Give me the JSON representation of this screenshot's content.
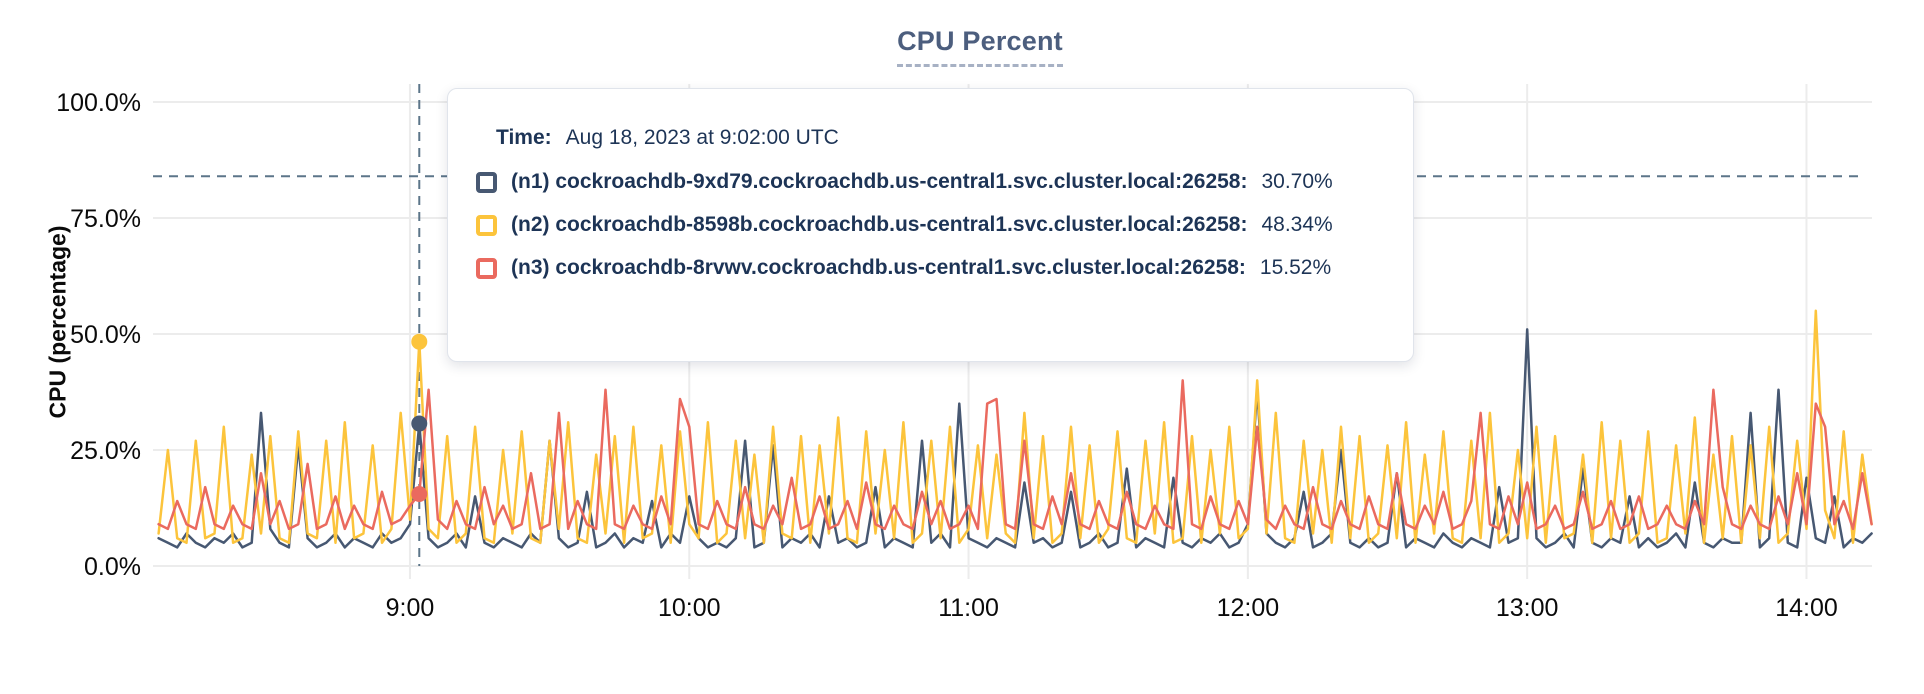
{
  "title": "CPU Percent",
  "colors": {
    "title": "#4C5E7E",
    "title_underline": "#A7B1C4",
    "grid": "#ECECEC",
    "crosshair": "#5C7589",
    "axis_text": "#0A0A0A",
    "tooltip_text": "#1D3456",
    "series_n1": "#475872",
    "series_n2": "#FCC43C",
    "series_n3": "#EA6A5F"
  },
  "tooltip": {
    "time_label": "Time:",
    "time_value": "Aug 18, 2023 at 9:02:00 UTC",
    "rows": [
      {
        "name": "(n1) cockroachdb-9xd79.cockroachdb.us-central1.svc.cluster.local:26258:",
        "value": "30.70%",
        "color": "#475872"
      },
      {
        "name": "(n2) cockroachdb-8598b.cockroachdb.us-central1.svc.cluster.local:26258:",
        "value": "48.34%",
        "color": "#FCC43C"
      },
      {
        "name": "(n3) cockroachdb-8rvwv.cockroachdb.us-central1.svc.cluster.local:26258:",
        "value": "15.52%",
        "color": "#EA6A5F"
      }
    ]
  },
  "chart_data": {
    "type": "line",
    "title": "CPU Percent",
    "xlabel": "",
    "ylabel": "CPU (percentage)",
    "ylim": [
      0,
      100
    ],
    "grid": true,
    "legend_position": "tooltip-overlay",
    "x_time_start": "8:06",
    "x_time_end": "14:14",
    "sample_step_minutes": 2,
    "yticks": [
      {
        "label": "0.0%",
        "value": 0
      },
      {
        "label": "25.0%",
        "value": 25
      },
      {
        "label": "50.0%",
        "value": 50
      },
      {
        "label": "75.0%",
        "value": 75
      },
      {
        "label": "100.0%",
        "value": 100
      }
    ],
    "xticks": [
      {
        "label": "9:00",
        "t": 54
      },
      {
        "label": "10:00",
        "t": 114
      },
      {
        "label": "11:00",
        "t": 174
      },
      {
        "label": "12:00",
        "t": 234
      },
      {
        "label": "13:00",
        "t": 294
      },
      {
        "label": "14:00",
        "t": 354
      }
    ],
    "hover": {
      "t": 56,
      "time": "Aug 18, 2023 at 9:02:00 UTC",
      "crosshair_value": 84,
      "points": [
        {
          "series": 0,
          "value": 30.7
        },
        {
          "series": 1,
          "value": 48.34
        },
        {
          "series": 2,
          "value": 15.52
        }
      ]
    },
    "series": [
      {
        "name": "(n1) cockroachdb-9xd79.cockroachdb.us-central1.svc.cluster.local:26258",
        "color": "#475872",
        "values": [
          6,
          5,
          4,
          7,
          5,
          4,
          6,
          5,
          7,
          4,
          5,
          33,
          8,
          5,
          4,
          26,
          6,
          4,
          5,
          7,
          4,
          6,
          5,
          4,
          7,
          5,
          6,
          9,
          30.7,
          6,
          4,
          5,
          7,
          4,
          15,
          5,
          4,
          6,
          5,
          4,
          7,
          5,
          27,
          6,
          4,
          5,
          16,
          4,
          5,
          7,
          4,
          6,
          5,
          14,
          4,
          7,
          5,
          15,
          6,
          4,
          5,
          4,
          6,
          27,
          4,
          5,
          26,
          4,
          6,
          5,
          7,
          4,
          15,
          5,
          6,
          4,
          5,
          17,
          4,
          6,
          5,
          4,
          27,
          5,
          7,
          4,
          35,
          6,
          5,
          4,
          6,
          5,
          4,
          18,
          5,
          6,
          4,
          5,
          16,
          4,
          5,
          7,
          4,
          5,
          21,
          4,
          6,
          5,
          4,
          19,
          5,
          4,
          6,
          5,
          7,
          4,
          5,
          9,
          38,
          7,
          5,
          4,
          6,
          16,
          4,
          5,
          7,
          25,
          5,
          4,
          6,
          4,
          5,
          20,
          4,
          6,
          5,
          4,
          7,
          5,
          4,
          6,
          5,
          4,
          17,
          5,
          6,
          51,
          6,
          4,
          5,
          7,
          4,
          21,
          5,
          4,
          6,
          5,
          15,
          4,
          6,
          4,
          5,
          7,
          4,
          18,
          5,
          4,
          6,
          5,
          5,
          33,
          4,
          6,
          38,
          5,
          4,
          19,
          6,
          5,
          15,
          4,
          6,
          5,
          7
        ]
      },
      {
        "name": "(n2) cockroachdb-8598b.cockroachdb.us-central1.svc.cluster.local:26258",
        "color": "#FCC43C",
        "values": [
          7,
          25,
          6,
          5,
          27,
          6,
          7,
          30,
          5,
          6,
          24,
          7,
          28,
          6,
          5,
          29,
          7,
          6,
          27,
          5,
          31,
          6,
          7,
          26,
          5,
          8,
          33,
          10,
          48.34,
          8,
          6,
          28,
          5,
          7,
          30,
          6,
          5,
          25,
          7,
          29,
          6,
          5,
          27,
          8,
          31,
          6,
          5,
          24,
          7,
          28,
          5,
          30,
          6,
          7,
          26,
          5,
          29,
          9,
          6,
          31,
          5,
          7,
          27,
          6,
          24,
          5,
          30,
          7,
          6,
          28,
          5,
          26,
          7,
          32,
          6,
          5,
          29,
          7,
          25,
          6,
          31,
          5,
          7,
          27,
          6,
          30,
          5,
          8,
          26,
          6,
          24,
          7,
          5,
          33,
          6,
          28,
          5,
          7,
          30,
          6,
          26,
          5,
          8,
          29,
          6,
          5,
          27,
          7,
          31,
          5,
          6,
          28,
          5,
          25,
          7,
          30,
          6,
          8,
          40,
          7,
          33,
          6,
          5,
          27,
          7,
          25,
          5,
          30,
          6,
          28,
          5,
          7,
          26,
          6,
          31,
          5,
          24,
          7,
          29,
          6,
          5,
          27,
          6,
          33,
          5,
          7,
          25,
          6,
          30,
          5,
          28,
          6,
          7,
          24,
          5,
          31,
          6,
          27,
          5,
          7,
          29,
          5,
          6,
          26,
          7,
          32,
          5,
          24,
          6,
          28,
          5,
          26,
          6,
          30,
          5,
          7,
          27,
          8,
          55,
          12,
          6,
          29,
          5,
          24,
          9
        ]
      },
      {
        "name": "(n3) cockroachdb-8rvwv.cockroachdb.us-central1.svc.cluster.local:26258",
        "color": "#EA6A5F",
        "values": [
          9,
          8,
          14,
          9,
          8,
          17,
          9,
          8,
          13,
          9,
          8,
          20,
          9,
          14,
          8,
          9,
          22,
          8,
          9,
          15,
          8,
          13,
          9,
          8,
          16,
          9,
          10,
          13,
          15.52,
          38,
          10,
          8,
          14,
          9,
          8,
          17,
          9,
          13,
          8,
          9,
          20,
          8,
          9,
          33,
          8,
          14,
          9,
          8,
          38,
          9,
          8,
          13,
          9,
          8,
          15,
          9,
          36,
          30,
          9,
          8,
          14,
          9,
          8,
          17,
          9,
          8,
          13,
          9,
          19,
          8,
          9,
          15,
          8,
          9,
          14,
          8,
          18,
          9,
          8,
          13,
          9,
          8,
          16,
          9,
          14,
          8,
          9,
          13,
          8,
          35,
          36,
          9,
          8,
          27,
          9,
          8,
          15,
          9,
          20,
          9,
          8,
          14,
          9,
          8,
          16,
          9,
          8,
          13,
          9,
          8,
          40,
          9,
          8,
          15,
          9,
          8,
          14,
          9,
          30,
          10,
          8,
          13,
          9,
          8,
          17,
          9,
          8,
          14,
          9,
          8,
          15,
          9,
          8,
          20,
          9,
          8,
          13,
          9,
          16,
          8,
          9,
          14,
          33,
          9,
          8,
          15,
          9,
          18,
          8,
          9,
          13,
          8,
          9,
          16,
          8,
          9,
          14,
          8,
          9,
          15,
          8,
          9,
          13,
          9,
          8,
          14,
          9,
          38,
          17,
          9,
          8,
          13,
          9,
          8,
          15,
          9,
          20,
          9,
          35,
          30,
          9,
          14,
          8,
          20,
          9
        ]
      }
    ]
  }
}
